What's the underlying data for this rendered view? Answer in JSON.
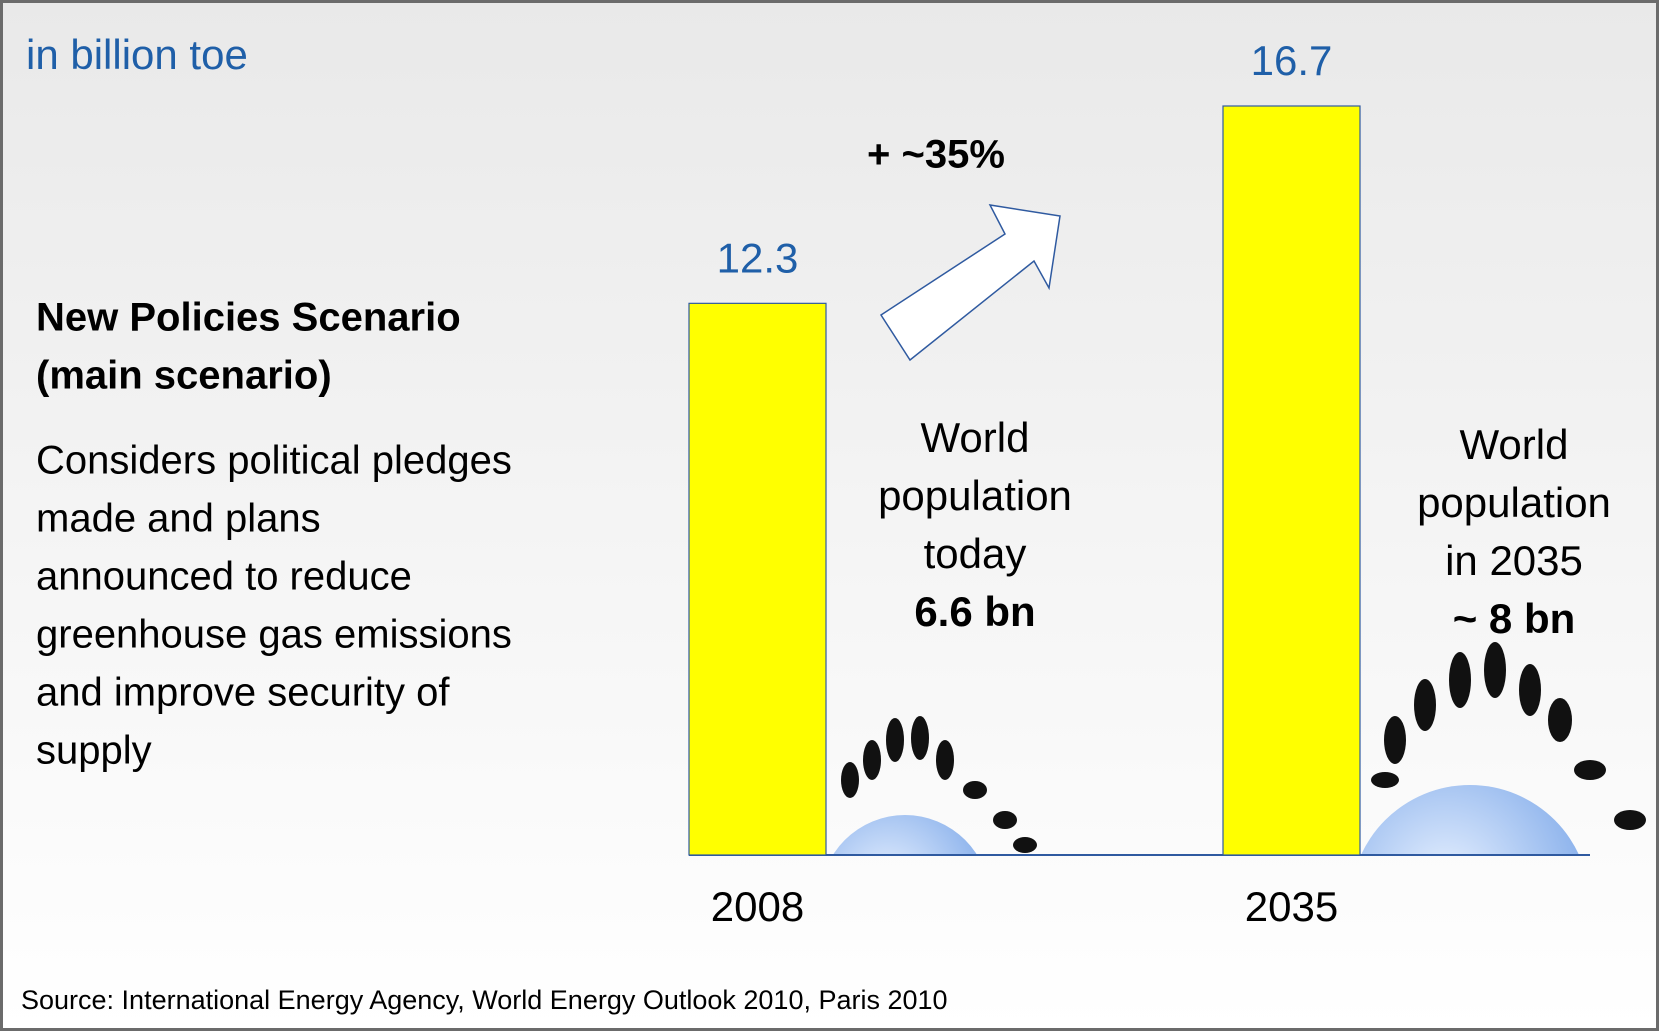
{
  "chart_data": {
    "type": "bar",
    "subtitle": "in billion toe",
    "categories": [
      "2008",
      "2035"
    ],
    "values": [
      12.3,
      16.7
    ],
    "color": "#ffff00",
    "label_color": "#1f5fa8",
    "growth_annotation": "+ ~35%",
    "scenario_title": [
      "New Policies Scenario",
      "(main scenario)"
    ],
    "scenario_description": [
      "Considers political pledges",
      "made and plans",
      "announced to reduce",
      "greenhouse gas emissions",
      "and improve security of",
      "supply"
    ],
    "population_annotations": [
      {
        "lines": [
          "World",
          "population",
          "today"
        ],
        "figure": "6.6 bn"
      },
      {
        "lines": [
          "World",
          "population",
          "in 2035"
        ],
        "figure": "~ 8 bn"
      }
    ],
    "source": "Source: International Energy Agency, World Energy Outlook 2010, Paris 2010"
  }
}
